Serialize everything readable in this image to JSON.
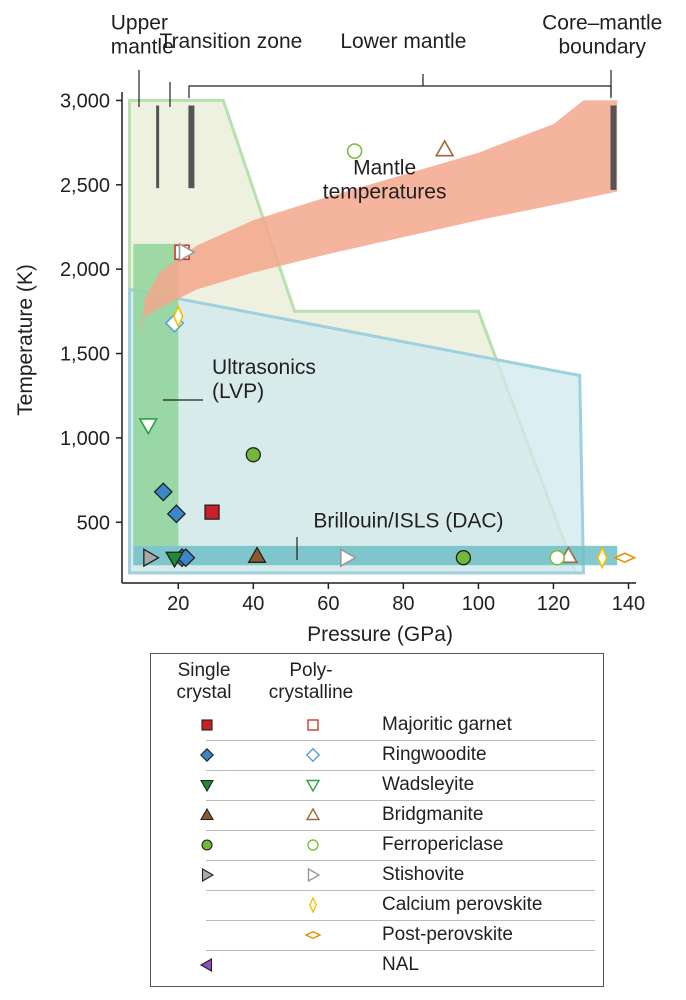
{
  "chart_data": {
    "type": "scatter",
    "xlabel": "Pressure (GPa)",
    "ylabel": "Temperature (K)",
    "xlim": [
      5,
      142
    ],
    "ylim": [
      140,
      3050
    ],
    "xticks": [
      20,
      40,
      60,
      80,
      100,
      120,
      140
    ],
    "yticks": [
      500,
      1000,
      1500,
      2000,
      2500,
      3000
    ],
    "ytick_labels": [
      "500",
      "1,000",
      "1,500",
      "2,000",
      "2,500",
      "3,000"
    ],
    "regions": [
      {
        "name": "Ultrasonics (LVP) outline",
        "fill": "#e8ecd4",
        "stroke": "#b8e0b0",
        "points": [
          [
            7,
            3000
          ],
          [
            32,
            3000
          ],
          [
            51,
            1750
          ],
          [
            100,
            1750
          ],
          [
            126,
            200
          ],
          [
            7,
            200
          ]
        ]
      },
      {
        "name": "Brillouin/ISLS (DAC) outline",
        "fill": "#cfe9ee",
        "stroke": "#9fd0e0",
        "points": [
          [
            7,
            1880
          ],
          [
            127,
            1370
          ],
          [
            128,
            200
          ],
          [
            7,
            200
          ]
        ]
      },
      {
        "name": "LVP darker band",
        "fill": "#8fd39b",
        "stroke": "none",
        "points": [
          [
            8,
            2150
          ],
          [
            20,
            2150
          ],
          [
            20,
            360
          ],
          [
            8,
            360
          ]
        ]
      },
      {
        "name": "DAC darker band",
        "fill": "#6fbfc7",
        "stroke": "none",
        "points": [
          [
            8,
            360
          ],
          [
            137,
            360
          ],
          [
            137,
            245
          ],
          [
            8,
            245
          ]
        ]
      },
      {
        "name": "Mantle temperatures",
        "fill": "#f3a78c",
        "stroke": "none",
        "points": [
          [
            10,
            1600
          ],
          [
            11,
            1820
          ],
          [
            15,
            1980
          ],
          [
            25,
            2140
          ],
          [
            40,
            2290
          ],
          [
            60,
            2430
          ],
          [
            80,
            2560
          ],
          [
            100,
            2690
          ],
          [
            120,
            2860
          ],
          [
            128,
            3000
          ],
          [
            137,
            3000
          ],
          [
            137,
            2460
          ],
          [
            120,
            2380
          ],
          [
            100,
            2290
          ],
          [
            80,
            2190
          ],
          [
            60,
            2090
          ],
          [
            40,
            1980
          ],
          [
            25,
            1880
          ],
          [
            15,
            1770
          ],
          [
            10,
            1700
          ]
        ]
      }
    ],
    "boundary_bars": [
      {
        "x": 14.5,
        "y0": 2480,
        "y1": 2970,
        "width": 3
      },
      {
        "x": 23.5,
        "y0": 2480,
        "y1": 2970,
        "width": 6
      },
      {
        "x": 136,
        "y0": 2470,
        "y1": 2970,
        "width": 6
      }
    ],
    "annotations": [
      {
        "text_lines": [
          "Upper",
          "mantle"
        ],
        "anchor": "start",
        "label_x": 2,
        "label_y": 3420
      },
      {
        "text_lines": [
          "Transition zone"
        ],
        "anchor": "start",
        "label_x": 15,
        "label_y": 3310
      },
      {
        "text_lines": [
          "Lower mantle"
        ],
        "anchor": "middle",
        "label_x": 80,
        "label_y": 3310
      },
      {
        "text_lines": [
          "Core–mantle",
          "boundary"
        ],
        "anchor": "middle",
        "label_x": 133,
        "label_y": 3420
      },
      {
        "text_lines": [
          "Mantle",
          "temperatures"
        ],
        "anchor": "middle",
        "label_x": 75,
        "label_y": 2560
      },
      {
        "text_lines": [
          "Ultrasonics",
          "(LVP)"
        ],
        "anchor": "start",
        "label_x": 29,
        "label_y": 1380
      },
      {
        "text_lines": [
          "Brillouin/ISLS (DAC)"
        ],
        "anchor": "start",
        "label_x": 56,
        "label_y": 470
      }
    ],
    "points": [
      {
        "mineral": "Majoritic garnet",
        "crystal": "single",
        "marker": "square",
        "x": 29,
        "y": 560
      },
      {
        "mineral": "Majoritic garnet",
        "crystal": "poly",
        "marker": "square",
        "x": 21,
        "y": 2100
      },
      {
        "mineral": "Ringwoodite",
        "crystal": "single",
        "marker": "diamond",
        "x": 16,
        "y": 680
      },
      {
        "mineral": "Ringwoodite",
        "crystal": "single",
        "marker": "diamond",
        "x": 19.5,
        "y": 550
      },
      {
        "mineral": "Ringwoodite",
        "crystal": "single",
        "marker": "diamond",
        "x": 21,
        "y": 290
      },
      {
        "mineral": "Ringwoodite",
        "crystal": "single",
        "marker": "diamond",
        "x": 22,
        "y": 290
      },
      {
        "mineral": "Ringwoodite",
        "crystal": "poly",
        "marker": "diamond",
        "x": 19,
        "y": 1680
      },
      {
        "mineral": "Wadsleyite",
        "crystal": "single",
        "marker": "tri-down",
        "x": 19,
        "y": 285
      },
      {
        "mineral": "Wadsleyite",
        "crystal": "poly",
        "marker": "tri-down",
        "x": 12,
        "y": 1075
      },
      {
        "mineral": "Bridgmanite",
        "crystal": "single",
        "marker": "tri-up",
        "x": 41,
        "y": 300
      },
      {
        "mineral": "Bridgmanite",
        "crystal": "poly",
        "marker": "tri-up",
        "x": 91,
        "y": 2710
      },
      {
        "mineral": "Bridgmanite",
        "crystal": "poly",
        "marker": "tri-up",
        "x": 124,
        "y": 300
      },
      {
        "mineral": "Ferropericlase",
        "crystal": "single",
        "marker": "circle",
        "x": 40,
        "y": 900
      },
      {
        "mineral": "Ferropericlase",
        "crystal": "single",
        "marker": "circle",
        "x": 96,
        "y": 290
      },
      {
        "mineral": "Ferropericlase",
        "crystal": "poly",
        "marker": "circle",
        "x": 67,
        "y": 2700
      },
      {
        "mineral": "Ferropericlase",
        "crystal": "poly",
        "marker": "circle",
        "x": 121,
        "y": 290
      },
      {
        "mineral": "Stishovite",
        "crystal": "single",
        "marker": "tri-right",
        "x": 12.5,
        "y": 290
      },
      {
        "mineral": "Stishovite",
        "crystal": "poly",
        "marker": "tri-right",
        "x": 22,
        "y": 2100
      },
      {
        "mineral": "Stishovite",
        "crystal": "poly",
        "marker": "tri-right",
        "x": 65,
        "y": 290
      },
      {
        "mineral": "Calcium perovskite",
        "crystal": "poly",
        "marker": "thin-diamond",
        "x": 20,
        "y": 1720
      },
      {
        "mineral": "Calcium perovskite",
        "crystal": "poly",
        "marker": "thin-diamond",
        "x": 133,
        "y": 290
      },
      {
        "mineral": "Post-perovskite",
        "crystal": "poly",
        "marker": "wide-diamond",
        "x": 139,
        "y": 290
      }
    ]
  },
  "legend": {
    "header_single": "Single crystal",
    "header_poly": "Poly-crystalline",
    "items": [
      {
        "label": "Majoritic garnet",
        "marker": "square",
        "single_color": "#c8202a",
        "poly_color": "#d0362e",
        "has_single": true,
        "has_poly": true
      },
      {
        "label": "Ringwoodite",
        "marker": "diamond",
        "single_color": "#3a86c6",
        "poly_color": "#5aa0d8",
        "has_single": true,
        "has_poly": true
      },
      {
        "label": "Wadsleyite",
        "marker": "tri-down",
        "single_color": "#1e8a35",
        "poly_color": "#2ea046",
        "has_single": true,
        "has_poly": true
      },
      {
        "label": "Bridgmanite",
        "marker": "tri-up",
        "single_color": "#8a5a2b",
        "poly_color": "#9a6a38",
        "has_single": true,
        "has_poly": true
      },
      {
        "label": "Ferropericlase",
        "marker": "circle",
        "single_color": "#73b83a",
        "poly_color": "#7cc040",
        "has_single": true,
        "has_poly": true
      },
      {
        "label": "Stishovite",
        "marker": "tri-right",
        "single_color": "#a9a9a9",
        "poly_color": "#999999",
        "has_single": true,
        "has_poly": true
      },
      {
        "label": "Calcium perovskite",
        "marker": "thin-diamond",
        "single_color": "#f2c200",
        "poly_color": "#f2c200",
        "has_single": false,
        "has_poly": true
      },
      {
        "label": "Post-perovskite",
        "marker": "wide-diamond",
        "single_color": "#e69100",
        "poly_color": "#e69100",
        "has_single": false,
        "has_poly": true
      },
      {
        "label": "NAL",
        "marker": "tri-left",
        "single_color": "#8e4fbf",
        "poly_color": "#8e4fbf",
        "has_single": true,
        "has_poly": false
      }
    ]
  }
}
